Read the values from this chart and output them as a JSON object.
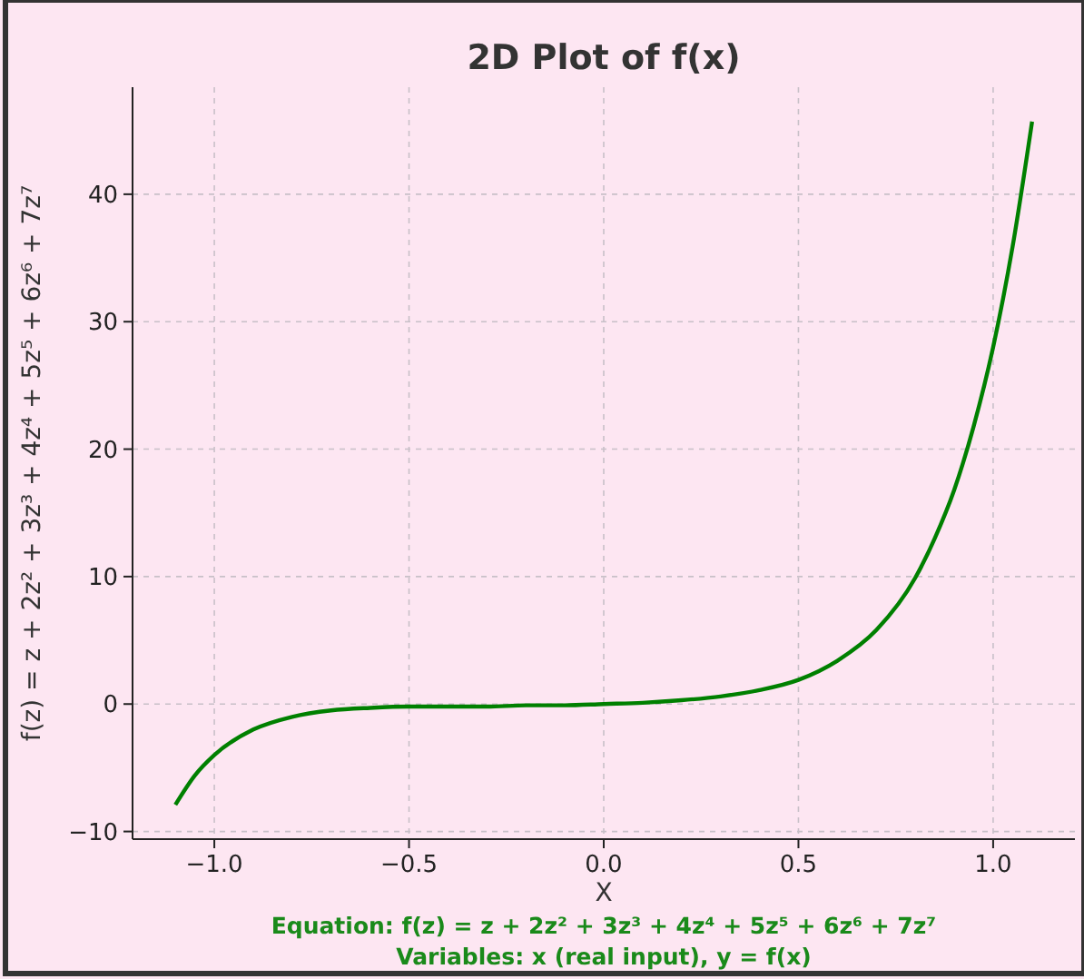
{
  "chart_data": {
    "type": "line",
    "title": "2D Plot of f(x)",
    "xlabel": "X",
    "ylabel": "f(z) = z + 2z² + 3z³ + 4z⁴ + 5z⁵ + 6z⁶ + 7z⁷",
    "x": [
      -1.1,
      -1.05,
      -1.0,
      -0.9,
      -0.8,
      -0.7,
      -0.6,
      -0.5,
      -0.4,
      -0.3,
      -0.2,
      -0.1,
      0,
      0.1,
      0.2,
      0.3,
      0.4,
      0.5,
      0.6,
      0.7,
      0.8,
      0.85,
      0.9,
      0.95,
      1.0,
      1.05,
      1.1
    ],
    "series": [
      {
        "color": "#008000",
        "values": [
          -7.9,
          -5.6,
          -4,
          -2,
          -1,
          -0.5,
          -0.3,
          -0.2,
          -0.2,
          -0.2,
          -0.1,
          -0.1,
          0,
          0.1,
          0.3,
          0.6,
          1.1,
          1.9,
          3.4,
          5.8,
          9.9,
          13,
          16.8,
          21.8,
          28,
          35.9,
          45.7
        ]
      }
    ],
    "xlim": [
      -1.21,
      1.21
    ],
    "ylim": [
      -10.6,
      48.4
    ],
    "xticks": [
      {
        "value": -1,
        "label": "−1.0"
      },
      {
        "value": -0.5,
        "label": "−0.5"
      },
      {
        "value": 0,
        "label": "0.0"
      },
      {
        "value": 0.5,
        "label": "0.5"
      },
      {
        "value": 1,
        "label": "1.0"
      }
    ],
    "yticks": [
      {
        "value": -10,
        "label": "−10"
      },
      0,
      10,
      20,
      30,
      40
    ],
    "grid": true,
    "line_style": "solid",
    "marker": "none",
    "annotations": [
      "Equation: f(z) = z + 2z² + 3z³ + 4z⁴ + 5z⁵ + 6z⁶ + 7z⁷",
      "Variables: x (real input), y = f(x)"
    ]
  }
}
